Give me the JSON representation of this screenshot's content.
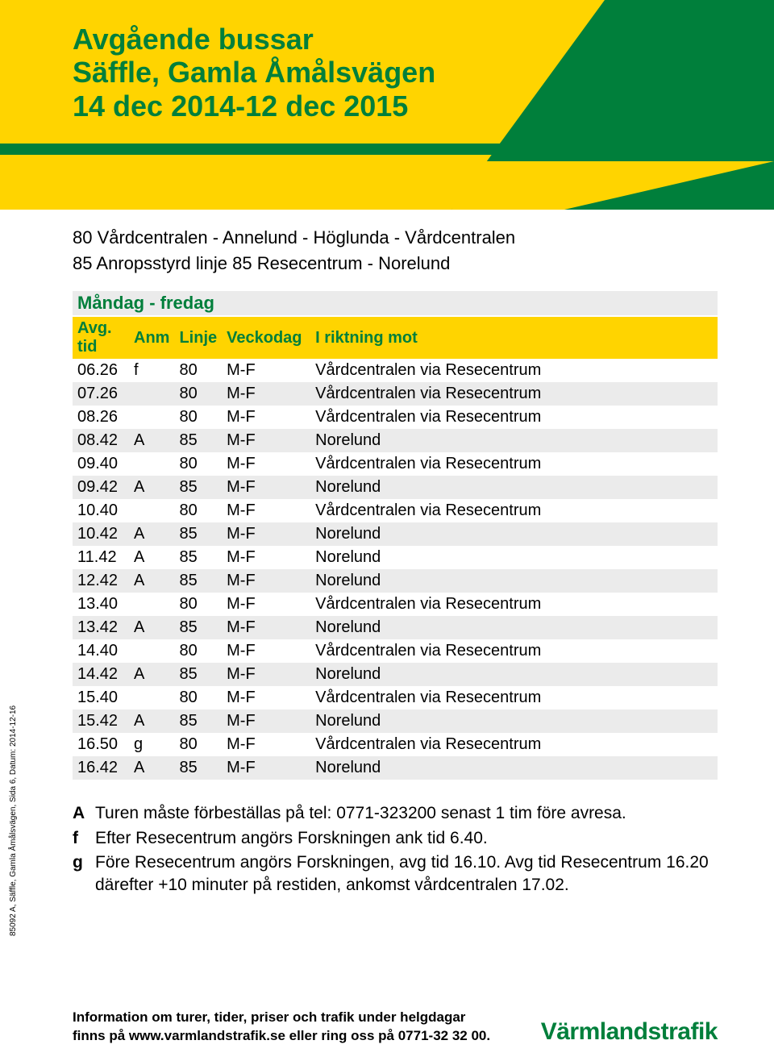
{
  "colors": {
    "yellow": "#ffd400",
    "green": "#007f3b",
    "row": "#ebebeb",
    "text": "#000000",
    "bg": "#ffffff"
  },
  "header": {
    "line1": "Avgående bussar",
    "line2": "Säffle, Gamla Åmålsvägen",
    "line3": "14 dec 2014-12 dec 2015"
  },
  "routes": [
    {
      "num": "80",
      "text": "Vårdcentralen - Annelund - Höglunda - Vårdcentralen"
    },
    {
      "num": "85",
      "text": "Anropsstyrd linje 85 Resecentrum - Norelund"
    }
  ],
  "section_title": "Måndag - fredag",
  "columns": {
    "time": "Avg. tid",
    "anm": "Anm",
    "line": "Linje",
    "day": "Veckodag",
    "dest": "I riktning mot"
  },
  "rows": [
    {
      "t": "06.26",
      "a": "f",
      "l": "80",
      "d": "M-F",
      "dest": "Vårdcentralen via Resecentrum"
    },
    {
      "t": "07.26",
      "a": "",
      "l": "80",
      "d": "M-F",
      "dest": "Vårdcentralen via Resecentrum"
    },
    {
      "t": "08.26",
      "a": "",
      "l": "80",
      "d": "M-F",
      "dest": "Vårdcentralen via Resecentrum"
    },
    {
      "t": "08.42",
      "a": "A",
      "l": "85",
      "d": "M-F",
      "dest": "Norelund"
    },
    {
      "t": "09.40",
      "a": "",
      "l": "80",
      "d": "M-F",
      "dest": "Vårdcentralen via Resecentrum"
    },
    {
      "t": "09.42",
      "a": "A",
      "l": "85",
      "d": "M-F",
      "dest": "Norelund"
    },
    {
      "t": "10.40",
      "a": "",
      "l": "80",
      "d": "M-F",
      "dest": "Vårdcentralen via Resecentrum"
    },
    {
      "t": "10.42",
      "a": "A",
      "l": "85",
      "d": "M-F",
      "dest": "Norelund"
    },
    {
      "t": "11.42",
      "a": "A",
      "l": "85",
      "d": "M-F",
      "dest": "Norelund"
    },
    {
      "t": "12.42",
      "a": "A",
      "l": "85",
      "d": "M-F",
      "dest": "Norelund"
    },
    {
      "t": "13.40",
      "a": "",
      "l": "80",
      "d": "M-F",
      "dest": "Vårdcentralen via Resecentrum"
    },
    {
      "t": "13.42",
      "a": "A",
      "l": "85",
      "d": "M-F",
      "dest": "Norelund"
    },
    {
      "t": "14.40",
      "a": "",
      "l": "80",
      "d": "M-F",
      "dest": "Vårdcentralen via Resecentrum"
    },
    {
      "t": "14.42",
      "a": "A",
      "l": "85",
      "d": "M-F",
      "dest": "Norelund"
    },
    {
      "t": "15.40",
      "a": "",
      "l": "80",
      "d": "M-F",
      "dest": "Vårdcentralen via Resecentrum"
    },
    {
      "t": "15.42",
      "a": "A",
      "l": "85",
      "d": "M-F",
      "dest": "Norelund"
    },
    {
      "t": "16.50",
      "a": "g",
      "l": "80",
      "d": "M-F",
      "dest": "Vårdcentralen via Resecentrum"
    },
    {
      "t": "16.42",
      "a": "A",
      "l": "85",
      "d": "M-F",
      "dest": "Norelund"
    }
  ],
  "notes": [
    {
      "k": "A",
      "t": "Turen måste förbeställas på tel: 0771-323200 senast 1 tim före avresa."
    },
    {
      "k": "f",
      "t": "Efter Resecentrum angörs Forskningen ank tid 6.40."
    },
    {
      "k": "g",
      "t": "Före Resecentrum angörs Forskningen, avg tid 16.10. Avg tid Resecentrum 16.20 därefter +10 minuter på restiden, ankomst vårdcentralen 17.02."
    }
  ],
  "side": "85092 A, Säffle, Gamla Åmålsvägen, Sida 6, Datum: 2014-12-16",
  "footer": {
    "line1": "Information om turer, tider, priser och trafik under helgdagar",
    "line2": "finns på www.varmlandstrafik.se eller ring oss på 0771-32 32 00.",
    "logo": "Värmlandstrafik"
  }
}
